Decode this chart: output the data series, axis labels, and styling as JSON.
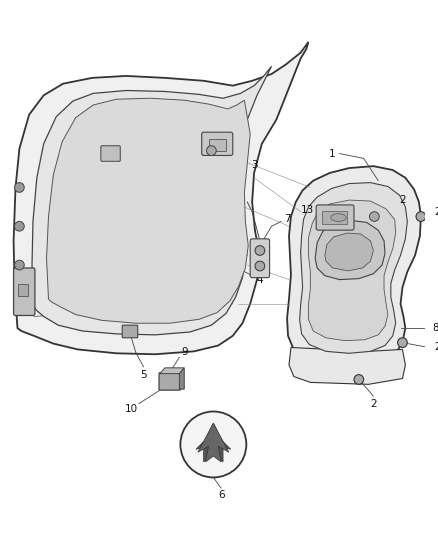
{
  "bg_color": "#ffffff",
  "lc": "#444444",
  "fig_width": 4.38,
  "fig_height": 5.33,
  "dpi": 100
}
